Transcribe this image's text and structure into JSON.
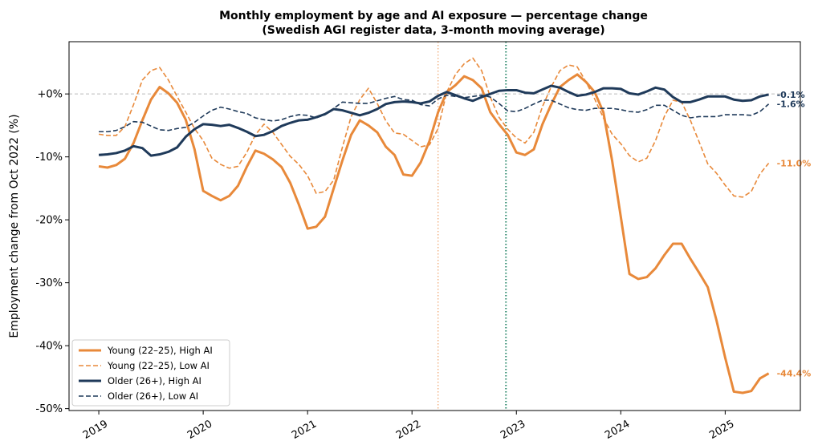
{
  "chart_data": {
    "type": "line",
    "title": "Monthly employment by age and AI exposure — percentage change",
    "subtitle": "(Swedish AGI register data, 3-month moving average)",
    "y_label": "Employment change from Oct 2022 (%)",
    "x": [
      2019.0,
      2019.083,
      2019.167,
      2019.25,
      2019.333,
      2019.417,
      2019.5,
      2019.583,
      2019.667,
      2019.75,
      2019.833,
      2019.917,
      2020.0,
      2020.083,
      2020.167,
      2020.25,
      2020.333,
      2020.417,
      2020.5,
      2020.583,
      2020.667,
      2020.75,
      2020.833,
      2020.917,
      2021.0,
      2021.083,
      2021.167,
      2021.25,
      2021.333,
      2021.417,
      2021.5,
      2021.583,
      2021.667,
      2021.75,
      2021.833,
      2021.917,
      2022.0,
      2022.083,
      2022.167,
      2022.25,
      2022.333,
      2022.417,
      2022.5,
      2022.583,
      2022.667,
      2022.75,
      2022.833,
      2022.917,
      2023.0,
      2023.083,
      2023.167,
      2023.25,
      2023.333,
      2023.417,
      2023.5,
      2023.583,
      2023.667,
      2023.75,
      2023.833,
      2023.917,
      2024.0,
      2024.083,
      2024.167,
      2024.25,
      2024.333,
      2024.417,
      2024.5,
      2024.583,
      2024.667,
      2024.75,
      2024.833,
      2024.917,
      2025.0,
      2025.083,
      2025.167,
      2025.25,
      2025.333,
      2025.417
    ],
    "xlim": [
      2018.715,
      2025.72
    ],
    "xticks": [
      2019,
      2020,
      2021,
      2022,
      2023,
      2024,
      2025
    ],
    "ylim": [
      -50.3,
      8.3
    ],
    "yticks": [
      {
        "value": 0,
        "label": "+0%"
      },
      {
        "value": -10,
        "label": "-10%"
      },
      {
        "value": -20,
        "label": "-20%"
      },
      {
        "value": -30,
        "label": "-30%"
      },
      {
        "value": -40,
        "label": "-40%"
      },
      {
        "value": -50,
        "label": "-50%"
      }
    ],
    "hline": {
      "value": 0,
      "color": "#bbbbbb"
    },
    "vlines": [
      {
        "value": 2022.25,
        "color": "#f0a36a"
      },
      {
        "value": 2022.9,
        "color": "#2e8b6e"
      }
    ],
    "legend": "lower left",
    "series": [
      {
        "name": "Young (22–25), High AI",
        "color": "#e8893a",
        "style": "solid",
        "width": 3,
        "end_label": "-44.4%",
        "values": [
          -11.5,
          -11.7,
          -11.3,
          -10.3,
          -7.8,
          -4.2,
          -0.9,
          1.1,
          0.1,
          -1.4,
          -4.1,
          -8.8,
          -15.4,
          -16.2,
          -16.9,
          -16.2,
          -14.6,
          -11.6,
          -9.0,
          -9.5,
          -10.4,
          -11.6,
          -14.1,
          -17.6,
          -21.4,
          -21.1,
          -19.5,
          -15.0,
          -10.6,
          -6.5,
          -4.2,
          -5.0,
          -6.1,
          -8.4,
          -9.7,
          -12.8,
          -13.0,
          -10.9,
          -7.5,
          -2.9,
          0.3,
          1.4,
          2.8,
          2.2,
          0.9,
          -2.9,
          -4.8,
          -6.5,
          -9.3,
          -9.7,
          -8.8,
          -4.8,
          -1.7,
          1.1,
          2.2,
          3.1,
          1.9,
          0.3,
          -2.9,
          -10.6,
          -19.5,
          -28.6,
          -29.4,
          -29.1,
          -27.7,
          -25.6,
          -23.8,
          -23.8,
          -26.2,
          -28.4,
          -30.7,
          -36.0,
          -41.9,
          -47.3,
          -47.5,
          -47.2,
          -45.2,
          -44.4
        ]
      },
      {
        "name": "Young (22–25), Low AI",
        "color": "#e8893a",
        "style": "dashed",
        "width": 1.6,
        "end_label": "-11.0%",
        "values": [
          -6.4,
          -6.6,
          -6.6,
          -5.2,
          -1.7,
          2.2,
          3.7,
          4.2,
          2.2,
          -0.4,
          -2.9,
          -5.5,
          -7.4,
          -10.2,
          -11.2,
          -11.8,
          -11.5,
          -9.3,
          -6.5,
          -4.8,
          -6.1,
          -8.0,
          -9.9,
          -11.2,
          -13.0,
          -15.8,
          -15.5,
          -13.7,
          -8.5,
          -3.6,
          -0.9,
          0.9,
          -1.5,
          -4.3,
          -6.2,
          -6.4,
          -7.4,
          -8.4,
          -8.1,
          -5.5,
          0.3,
          3.1,
          4.8,
          5.7,
          3.7,
          -0.5,
          -3.7,
          -5.6,
          -7.0,
          -7.8,
          -6.1,
          -2.0,
          1.1,
          3.7,
          4.6,
          4.3,
          1.9,
          -0.8,
          -3.8,
          -6.4,
          -7.9,
          -9.8,
          -10.8,
          -10.2,
          -7.4,
          -3.6,
          -1.0,
          -1.3,
          -4.2,
          -7.6,
          -11.1,
          -12.6,
          -14.5,
          -16.2,
          -16.4,
          -15.5,
          -12.7,
          -11.0
        ]
      },
      {
        "name": "Older (26+), High AI",
        "color": "#1f3a5a",
        "style": "solid",
        "width": 3,
        "end_label": "-0.1%",
        "values": [
          -9.7,
          -9.6,
          -9.4,
          -9.0,
          -8.3,
          -8.6,
          -9.8,
          -9.6,
          -9.2,
          -8.5,
          -6.8,
          -5.6,
          -4.8,
          -4.9,
          -5.1,
          -4.9,
          -5.4,
          -6.0,
          -6.7,
          -6.5,
          -5.9,
          -5.1,
          -4.6,
          -4.2,
          -4.1,
          -3.7,
          -3.2,
          -2.4,
          -2.6,
          -3.0,
          -3.4,
          -3.0,
          -2.4,
          -1.6,
          -1.3,
          -1.2,
          -1.3,
          -1.5,
          -1.2,
          -0.3,
          0.3,
          -0.2,
          -0.7,
          -1.1,
          -0.5,
          0.0,
          0.5,
          0.6,
          0.6,
          0.2,
          0.1,
          0.7,
          1.3,
          1.0,
          0.3,
          -0.3,
          -0.1,
          0.3,
          0.9,
          0.9,
          0.8,
          0.1,
          -0.1,
          0.4,
          1.0,
          0.7,
          -0.5,
          -1.3,
          -1.3,
          -0.9,
          -0.4,
          -0.4,
          -0.4,
          -0.9,
          -1.1,
          -1.0,
          -0.4,
          -0.1
        ]
      },
      {
        "name": "Older (26+), Low AI",
        "color": "#1f3a5a",
        "style": "dashed",
        "width": 1.6,
        "end_label": "-1.6%",
        "values": [
          -6.0,
          -6.0,
          -5.8,
          -5.2,
          -4.4,
          -4.5,
          -5.1,
          -5.7,
          -5.8,
          -5.5,
          -5.3,
          -4.5,
          -3.5,
          -2.6,
          -2.1,
          -2.4,
          -2.8,
          -3.1,
          -3.8,
          -4.1,
          -4.3,
          -4.1,
          -3.6,
          -3.3,
          -3.4,
          -3.8,
          -3.3,
          -2.3,
          -1.3,
          -1.4,
          -1.5,
          -1.5,
          -1.1,
          -0.7,
          -0.4,
          -0.9,
          -1.0,
          -1.7,
          -1.9,
          -0.8,
          -0.2,
          -0.4,
          -0.6,
          -0.4,
          -0.2,
          -0.5,
          -1.5,
          -2.7,
          -2.8,
          -2.3,
          -1.6,
          -1.0,
          -1.0,
          -1.6,
          -2.2,
          -2.5,
          -2.6,
          -2.3,
          -2.3,
          -2.3,
          -2.5,
          -2.8,
          -2.9,
          -2.5,
          -1.8,
          -1.8,
          -2.6,
          -3.4,
          -3.8,
          -3.6,
          -3.6,
          -3.6,
          -3.3,
          -3.3,
          -3.3,
          -3.4,
          -2.8,
          -1.6
        ]
      }
    ]
  }
}
